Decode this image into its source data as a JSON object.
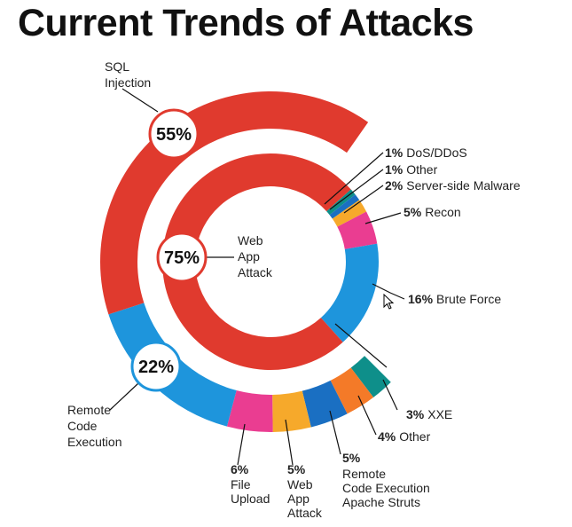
{
  "title": "Current Trends of Attacks",
  "chart_data": {
    "type": "donut",
    "outer_ring": {
      "segments": [
        {
          "name": "SQL Injection",
          "value": 55,
          "label": "55%",
          "color": "#e03a2e"
        },
        {
          "name": "Remote Code Execution",
          "value": 22,
          "label": "22%",
          "color": "#1e95dc"
        }
      ],
      "sub_segments": [
        {
          "name": "Remote Code Execution",
          "value": 22,
          "color": "#1e95dc"
        },
        {
          "name": "File Upload",
          "value": 6,
          "color": "#ea3d91"
        },
        {
          "name": "Web App Attack",
          "value": 5,
          "color": "#f6a92b"
        },
        {
          "name": "Remote Code Execution Apache Struts",
          "value": 5,
          "color": "#1a6fc2"
        },
        {
          "name": "Other",
          "value": 4,
          "color": "#f47a28"
        },
        {
          "name": "XXE",
          "value": 3,
          "color": "#0e8f8a"
        }
      ]
    },
    "inner_ring": {
      "segments": [
        {
          "name": "Web App Attack",
          "value": 75,
          "label": "75%",
          "color": "#e03a2e"
        },
        {
          "name": "Brute Force",
          "value": 16,
          "color": "#1e95dc"
        },
        {
          "name": "Recon",
          "value": 5,
          "color": "#ea3d91"
        },
        {
          "name": "Server-side Malware",
          "value": 2,
          "color": "#f6a92b"
        },
        {
          "name": "Other",
          "value": 1,
          "color": "#1a6fc2"
        },
        {
          "name": "DoS/DDoS",
          "value": 1,
          "color": "#0e8f8a"
        }
      ]
    },
    "labels": {
      "sql": {
        "line1": "SQL",
        "line2": "Injection"
      },
      "rce": {
        "line1": "Remote",
        "line2": "Code",
        "line3": "Execution"
      },
      "webapp_inner": {
        "line1": "Web",
        "line2": "App",
        "line3": "Attack"
      },
      "dos": {
        "pct": "1%",
        "text": "DoS/DDoS"
      },
      "other1": {
        "pct": "1%",
        "text": "Other"
      },
      "malware": {
        "pct": "2%",
        "text": "Server-side Malware"
      },
      "recon": {
        "pct": "5%",
        "text": "Recon"
      },
      "brute": {
        "pct": "16%",
        "text": "Brute Force"
      },
      "xxe": {
        "pct": "3%",
        "text": "XXE"
      },
      "other4": {
        "pct": "4%",
        "text": "Other"
      },
      "struts": {
        "pct": "5%",
        "line1": "Remote",
        "line2": "Code Execution",
        "line3": "Apache Struts"
      },
      "webapp_outer": {
        "pct": "5%",
        "line1": "Web",
        "line2": "App",
        "line3": "Attack"
      },
      "upload": {
        "pct": "6%",
        "line1": "File",
        "line2": "Upload"
      }
    },
    "badges": {
      "sql": "55%",
      "rce": "22%",
      "webapp": "75%"
    }
  }
}
